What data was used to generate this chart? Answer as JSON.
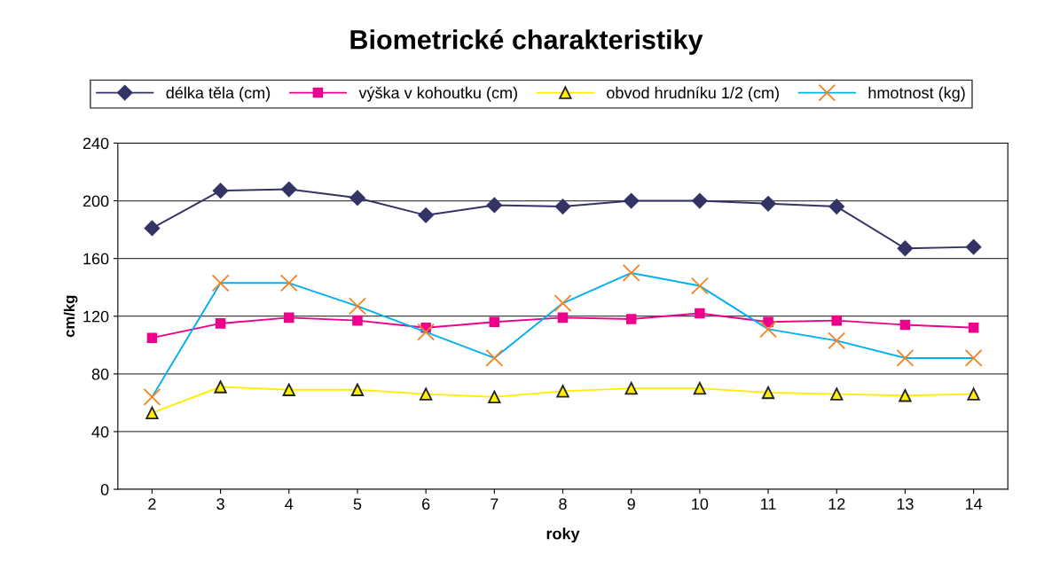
{
  "chart_data": {
    "type": "line",
    "title": "Biometrické charakteristiky",
    "xlabel": "roky",
    "ylabel": "cm/kg",
    "categories": [
      "2",
      "3",
      "4",
      "5",
      "6",
      "7",
      "8",
      "9",
      "10",
      "11",
      "12",
      "13",
      "14"
    ],
    "series": [
      {
        "name": "délka těla (cm)",
        "color": "#333366",
        "marker": "diamond",
        "values": [
          181,
          207,
          208,
          202,
          190,
          197,
          196,
          200,
          200,
          198,
          196,
          167,
          168
        ]
      },
      {
        "name": "výška v kohoutku (cm)",
        "color": "#ec008c",
        "marker": "square",
        "values": [
          105,
          115,
          119,
          117,
          112,
          116,
          119,
          118,
          122,
          116,
          117,
          114,
          112
        ]
      },
      {
        "name": "obvod hrudníku 1/2 (cm)",
        "color": "#ffee00",
        "marker": "triangle",
        "values": [
          53,
          71,
          69,
          69,
          66,
          64,
          68,
          70,
          70,
          67,
          66,
          65,
          66
        ]
      },
      {
        "name": "hmotnost (kg)",
        "color": "#00b0f0",
        "marker": "cross",
        "values": [
          64,
          143,
          143,
          127,
          109,
          91,
          129,
          150,
          141,
          111,
          103,
          91,
          91
        ]
      }
    ],
    "ylim": [
      0,
      240
    ],
    "yticks": [
      0,
      40,
      80,
      120,
      160,
      200,
      240
    ],
    "grid": "y",
    "legend": "top"
  }
}
